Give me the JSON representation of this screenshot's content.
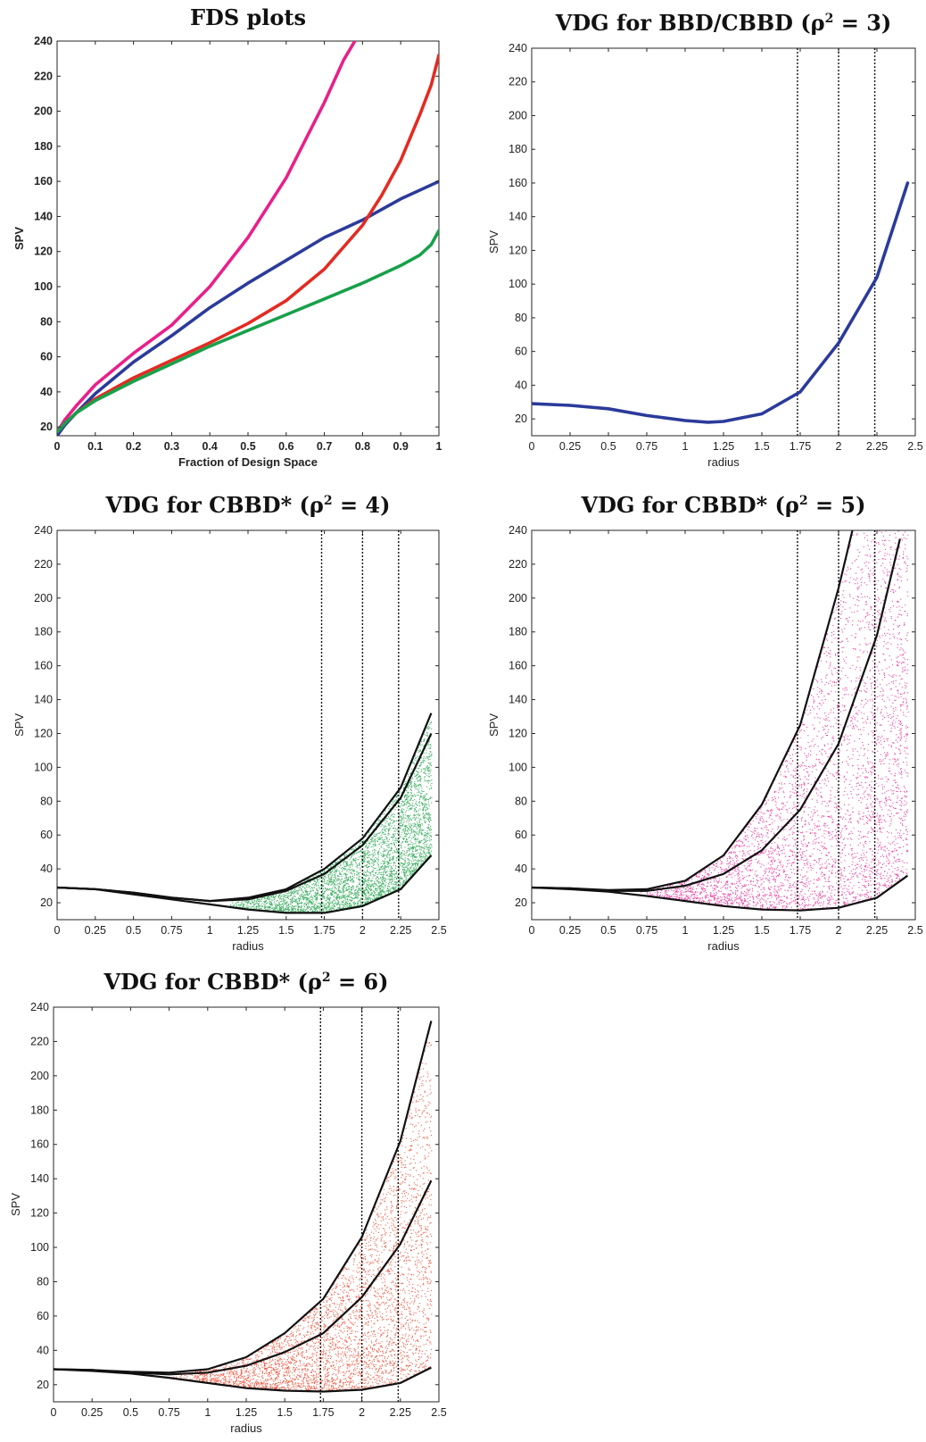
{
  "chart_data": [
    {
      "id": "fds",
      "type": "line",
      "title": "FDS plots",
      "xlabel": "Fraction of Design Space",
      "ylabel": "SPV",
      "xlim": [
        0,
        1
      ],
      "ylim": [
        15,
        240
      ],
      "xticks": [
        "0",
        "0.1",
        "0.2",
        "0.3",
        "0.4",
        "0.5",
        "0.6",
        "0.7",
        "0.8",
        "0.9",
        "1"
      ],
      "yticks": [
        "20",
        "40",
        "60",
        "80",
        "100",
        "120",
        "140",
        "160",
        "180",
        "200",
        "220",
        "240"
      ],
      "grid": false,
      "legend": "none",
      "series": [
        {
          "color": "#e8208a",
          "x": [
            0,
            0.02,
            0.05,
            0.1,
            0.15,
            0.2,
            0.3,
            0.4,
            0.5,
            0.6,
            0.7,
            0.75,
            0.78
          ],
          "y": [
            17,
            24,
            32,
            44,
            53,
            62,
            78,
            100,
            128,
            162,
            205,
            229,
            240
          ]
        },
        {
          "color": "#2b3b9a",
          "x": [
            0,
            0.02,
            0.05,
            0.1,
            0.2,
            0.3,
            0.4,
            0.5,
            0.6,
            0.7,
            0.8,
            0.9,
            1
          ],
          "y": [
            15,
            21,
            28,
            39,
            57,
            72,
            88,
            102,
            115,
            128,
            138,
            150,
            160
          ]
        },
        {
          "color": "#e32b22",
          "x": [
            0,
            0.02,
            0.05,
            0.1,
            0.2,
            0.3,
            0.4,
            0.5,
            0.6,
            0.7,
            0.8,
            0.85,
            0.9,
            0.95,
            0.98,
            1
          ],
          "y": [
            17,
            22,
            28,
            36,
            48,
            58,
            68,
            79,
            92,
            110,
            135,
            152,
            172,
            198,
            215,
            232
          ]
        },
        {
          "color": "#18a04a",
          "x": [
            0,
            0.02,
            0.05,
            0.1,
            0.2,
            0.3,
            0.4,
            0.5,
            0.6,
            0.7,
            0.8,
            0.9,
            0.95,
            0.98,
            1
          ],
          "y": [
            17,
            22,
            28,
            35,
            46,
            56,
            66,
            75,
            84,
            93,
            102,
            112,
            118,
            124,
            132
          ]
        }
      ]
    },
    {
      "id": "vdg3",
      "type": "line",
      "title": "VDG for BBD/CBBD (ρ² = 3)",
      "xlabel": "radius",
      "ylabel": "SPV",
      "xlim": [
        0,
        2.5
      ],
      "ylim": [
        10,
        240
      ],
      "xticks": [
        "0",
        "0.25",
        "0.5",
        "0.75",
        "1",
        "1.25",
        "1.5",
        "1.75",
        "2",
        "2.25",
        "2.5"
      ],
      "yticks": [
        "20",
        "40",
        "60",
        "80",
        "100",
        "120",
        "140",
        "160",
        "180",
        "200",
        "220",
        "240"
      ],
      "vlines": [
        1.732,
        2.0,
        2.236
      ],
      "grid": false,
      "legend": "none",
      "series": [
        {
          "color": "#2b3b9a",
          "x": [
            0,
            0.25,
            0.5,
            0.75,
            1.0,
            1.15,
            1.25,
            1.5,
            1.75,
            2.0,
            2.25,
            2.45
          ],
          "y": [
            29,
            28,
            26,
            22,
            19,
            18,
            18.5,
            23,
            36,
            65,
            104,
            160
          ]
        }
      ]
    },
    {
      "id": "vdg4",
      "type": "scatter",
      "title": "VDG for CBBD* (ρ² = 4)",
      "xlabel": "radius",
      "ylabel": "SPV",
      "xlim": [
        0,
        2.5
      ],
      "ylim": [
        10,
        240
      ],
      "xticks": [
        "0",
        "0.25",
        "0.5",
        "0.75",
        "1",
        "1.25",
        "1.5",
        "1.75",
        "2",
        "2.25",
        "2.5"
      ],
      "yticks": [
        "20",
        "40",
        "60",
        "80",
        "100",
        "120",
        "140",
        "160",
        "180",
        "200",
        "220",
        "240"
      ],
      "vlines": [
        1.732,
        2.0,
        2.236
      ],
      "grid": false,
      "legend": "none",
      "scatter_color": "#0f9a3c",
      "scatter_x_range": [
        1.1,
        2.45
      ],
      "envelopes": [
        {
          "role": "max",
          "x": [
            0,
            0.25,
            0.5,
            0.75,
            1.0,
            1.25,
            1.5,
            1.75,
            2.0,
            2.25,
            2.45
          ],
          "y": [
            29,
            28,
            26,
            23,
            21,
            23,
            28,
            40,
            58,
            88,
            132
          ]
        },
        {
          "role": "mean",
          "x": [
            0,
            0.25,
            0.5,
            0.75,
            1.0,
            1.25,
            1.5,
            1.75,
            2.0,
            2.25,
            2.45
          ],
          "y": [
            29,
            28,
            26,
            23,
            21,
            22,
            27,
            37,
            54,
            82,
            120
          ]
        },
        {
          "role": "min",
          "x": [
            0,
            0.25,
            0.5,
            0.75,
            1.0,
            1.25,
            1.5,
            1.75,
            2.0,
            2.25,
            2.45
          ],
          "y": [
            29,
            28,
            25,
            22,
            19,
            16,
            14,
            14,
            18,
            28,
            48
          ]
        }
      ]
    },
    {
      "id": "vdg5",
      "type": "scatter",
      "title": "VDG for CBBD* (ρ² = 5)",
      "xlabel": "radius",
      "ylabel": "SPV",
      "xlim": [
        0,
        2.5
      ],
      "ylim": [
        10,
        240
      ],
      "xticks": [
        "0",
        "0.25",
        "0.5",
        "0.75",
        "1",
        "1.25",
        "1.5",
        "1.75",
        "2",
        "2.25",
        "2.5"
      ],
      "yticks": [
        "20",
        "40",
        "60",
        "80",
        "100",
        "120",
        "140",
        "160",
        "180",
        "200",
        "220",
        "240"
      ],
      "vlines": [
        1.732,
        2.0,
        2.236
      ],
      "grid": false,
      "legend": "none",
      "scatter_color": "#e3158a",
      "scatter_x_range": [
        0.7,
        2.45
      ],
      "envelopes": [
        {
          "role": "max",
          "x": [
            0,
            0.25,
            0.5,
            0.75,
            1.0,
            1.25,
            1.5,
            1.75,
            2.0,
            2.09
          ],
          "y": [
            29,
            28.5,
            27.5,
            28,
            33,
            48,
            78,
            125,
            206,
            240
          ]
        },
        {
          "role": "mean",
          "x": [
            0,
            0.25,
            0.5,
            0.75,
            1.0,
            1.25,
            1.5,
            1.75,
            2.0,
            2.25,
            2.4
          ],
          "y": [
            29,
            28.5,
            27,
            27,
            30,
            37,
            51,
            75,
            114,
            178,
            235
          ]
        },
        {
          "role": "min",
          "x": [
            0,
            0.25,
            0.5,
            0.75,
            1.0,
            1.25,
            1.5,
            1.75,
            2.0,
            2.25,
            2.45
          ],
          "y": [
            29,
            28,
            26.5,
            24,
            21,
            18,
            16,
            15.5,
            17,
            23,
            36
          ]
        }
      ]
    },
    {
      "id": "vdg6",
      "type": "scatter",
      "title": "VDG for CBBD* (ρ² = 6)",
      "xlabel": "radius",
      "ylabel": "SPV",
      "xlim": [
        0,
        2.5
      ],
      "ylim": [
        10,
        240
      ],
      "xticks": [
        "0",
        "0.25",
        "0.5",
        "0.75",
        "1",
        "1.25",
        "1.5",
        "1.75",
        "2",
        "2.25",
        "2.5"
      ],
      "yticks": [
        "20",
        "40",
        "60",
        "80",
        "100",
        "120",
        "140",
        "160",
        "180",
        "200",
        "220",
        "240"
      ],
      "vlines": [
        1.732,
        2.0,
        2.236
      ],
      "grid": false,
      "legend": "none",
      "scatter_color": "#e63a1e",
      "scatter_x_range": [
        0.75,
        2.45
      ],
      "envelopes": [
        {
          "role": "max",
          "x": [
            0,
            0.25,
            0.5,
            0.75,
            1.0,
            1.25,
            1.5,
            1.75,
            2.0,
            2.25,
            2.45
          ],
          "y": [
            29,
            28.5,
            27.5,
            27,
            29,
            36,
            50,
            70,
            106,
            162,
            232
          ]
        },
        {
          "role": "mean",
          "x": [
            0,
            0.25,
            0.5,
            0.75,
            1.0,
            1.25,
            1.5,
            1.75,
            2.0,
            2.25,
            2.45
          ],
          "y": [
            29,
            28.5,
            27,
            26,
            27,
            31,
            39,
            50,
            71,
            102,
            139
          ]
        },
        {
          "role": "min",
          "x": [
            0,
            0.25,
            0.5,
            0.75,
            1.0,
            1.25,
            1.5,
            1.75,
            2.0,
            2.25,
            2.45
          ],
          "y": [
            29,
            28,
            26.5,
            24,
            21,
            18,
            16.5,
            16,
            17,
            21,
            30
          ]
        }
      ]
    }
  ]
}
